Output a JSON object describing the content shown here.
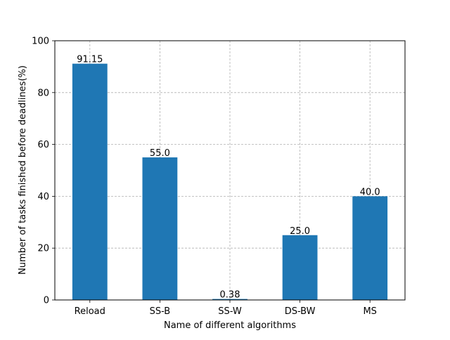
{
  "chart_data": {
    "type": "bar",
    "title": "",
    "xlabel": "Name of different algorithms",
    "ylabel": "Number of tasks finished before deadlines(%)",
    "categories": [
      "Reload",
      "SS-B",
      "SS-W",
      "DS-BW",
      "MS"
    ],
    "values": [
      91.15,
      55.0,
      0.38,
      25.0,
      40.0
    ],
    "value_labels": [
      "91.15",
      "55.0",
      "0.38",
      "25.0",
      "40.0"
    ],
    "ylim": [
      0,
      100
    ],
    "yticks": [
      0,
      20,
      40,
      60,
      80,
      100
    ],
    "grid": true,
    "legend": "none",
    "bar_color": "#1f77b4",
    "grid_color": "#b0b0b0"
  }
}
